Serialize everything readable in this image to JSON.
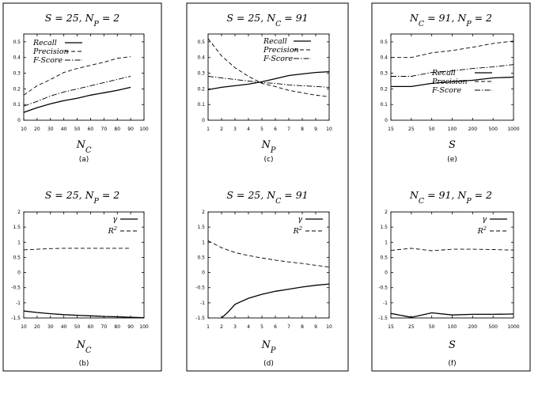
{
  "chart_data": [
    {
      "id": "a",
      "type": "line",
      "title": "S = 25, N_P = 2",
      "xlabel": "N_C",
      "caption": "(a)",
      "xlim": [
        10,
        100
      ],
      "ylim": [
        0,
        0.55
      ],
      "xticks": [
        10,
        20,
        30,
        40,
        50,
        60,
        70,
        80,
        90,
        100
      ],
      "yticks": [
        0,
        0.1,
        0.2,
        0.3,
        0.4,
        0.5
      ],
      "legend_position": "top-left",
      "series": [
        {
          "name": "Recall",
          "style": "solid",
          "x": [
            10,
            20,
            30,
            40,
            50,
            60,
            70,
            80,
            90
          ],
          "y": [
            0.05,
            0.08,
            0.105,
            0.125,
            0.14,
            0.16,
            0.175,
            0.19,
            0.21
          ]
        },
        {
          "name": "Precision",
          "style": "dashed",
          "x": [
            10,
            20,
            30,
            40,
            50,
            60,
            70,
            80,
            90
          ],
          "y": [
            0.16,
            0.22,
            0.26,
            0.305,
            0.33,
            0.35,
            0.37,
            0.395,
            0.405
          ]
        },
        {
          "name": "F-Score",
          "style": "dashdot",
          "x": [
            10,
            20,
            30,
            40,
            50,
            60,
            70,
            80,
            90
          ],
          "y": [
            0.09,
            0.12,
            0.155,
            0.18,
            0.2,
            0.22,
            0.24,
            0.26,
            0.28
          ]
        }
      ]
    },
    {
      "id": "c",
      "type": "line",
      "title": "S = 25, N_C = 91",
      "xlabel": "N_P",
      "caption": "(c)",
      "xlim": [
        1,
        10
      ],
      "ylim": [
        0,
        0.55
      ],
      "xticks": [
        1,
        2,
        3,
        4,
        5,
        6,
        7,
        8,
        9,
        10
      ],
      "yticks": [
        0,
        0.1,
        0.2,
        0.3,
        0.4,
        0.5
      ],
      "legend_position": "top-right",
      "series": [
        {
          "name": "Recall",
          "style": "solid",
          "x": [
            1,
            2,
            3,
            4,
            5,
            6,
            7,
            8,
            9,
            10
          ],
          "y": [
            0.195,
            0.21,
            0.22,
            0.23,
            0.245,
            0.265,
            0.285,
            0.295,
            0.305,
            0.31
          ]
        },
        {
          "name": "Precision",
          "style": "dashed",
          "x": [
            1,
            2,
            3,
            4,
            5,
            6,
            7,
            8,
            9,
            10
          ],
          "y": [
            0.52,
            0.41,
            0.335,
            0.28,
            0.235,
            0.215,
            0.19,
            0.175,
            0.16,
            0.15
          ]
        },
        {
          "name": "F-Score",
          "style": "dashdot",
          "x": [
            1,
            2,
            3,
            4,
            5,
            6,
            7,
            8,
            9,
            10
          ],
          "y": [
            0.28,
            0.27,
            0.26,
            0.25,
            0.24,
            0.235,
            0.225,
            0.22,
            0.215,
            0.21
          ]
        }
      ]
    },
    {
      "id": "e",
      "type": "line",
      "title": "N_C = 91, N_P = 2",
      "xlabel": "S",
      "caption": "(e)",
      "xscale": "log",
      "xlim": [
        15,
        1000
      ],
      "ylim": [
        0,
        0.55
      ],
      "xticks": [
        15,
        25,
        50,
        100,
        200,
        500,
        1000
      ],
      "yticks": [
        0,
        0.1,
        0.2,
        0.3,
        0.4,
        0.5
      ],
      "legend_position": "bottom-right",
      "series": [
        {
          "name": "Recall",
          "style": "solid",
          "x": [
            15,
            25,
            50,
            100,
            200,
            500,
            1000
          ],
          "y": [
            0.215,
            0.215,
            0.235,
            0.245,
            0.255,
            0.27,
            0.275
          ]
        },
        {
          "name": "Precision",
          "style": "dashed",
          "x": [
            15,
            25,
            50,
            100,
            200,
            500,
            1000
          ],
          "y": [
            0.4,
            0.4,
            0.43,
            0.445,
            0.465,
            0.49,
            0.505
          ]
        },
        {
          "name": "F-Score",
          "style": "dashdot",
          "x": [
            15,
            25,
            50,
            100,
            200,
            500,
            1000
          ],
          "y": [
            0.28,
            0.28,
            0.305,
            0.315,
            0.33,
            0.34,
            0.355
          ]
        }
      ]
    },
    {
      "id": "b",
      "type": "line",
      "title": "S = 25, N_P = 2",
      "xlabel": "N_C",
      "caption": "(b)",
      "xlim": [
        10,
        100
      ],
      "ylim": [
        -1.5,
        2
      ],
      "xticks": [
        10,
        20,
        30,
        40,
        50,
        60,
        70,
        80,
        90,
        100
      ],
      "yticks": [
        -1.5,
        -1,
        -0.5,
        0,
        0.5,
        1,
        1.5,
        2
      ],
      "legend_position": "top-right",
      "series": [
        {
          "name": "γ",
          "style": "solid",
          "x": [
            10,
            20,
            30,
            40,
            50,
            60,
            70,
            80,
            90,
            100
          ],
          "y": [
            -1.27,
            -1.32,
            -1.36,
            -1.39,
            -1.41,
            -1.43,
            -1.45,
            -1.46,
            -1.48,
            -1.49
          ]
        },
        {
          "name": "R²",
          "style": "dashed",
          "x": [
            10,
            20,
            30,
            40,
            50,
            60,
            70,
            80,
            90
          ],
          "y": [
            0.75,
            0.77,
            0.79,
            0.8,
            0.8,
            0.8,
            0.8,
            0.8,
            0.8
          ]
        }
      ]
    },
    {
      "id": "d",
      "type": "line",
      "title": "S = 25, N_C = 91",
      "xlabel": "N_P",
      "caption": "(d)",
      "xlim": [
        1,
        10
      ],
      "ylim": [
        -1.5,
        2
      ],
      "xticks": [
        1,
        2,
        3,
        4,
        5,
        6,
        7,
        8,
        9,
        10
      ],
      "yticks": [
        -1.5,
        -1,
        -0.5,
        0,
        0.5,
        1,
        1.5,
        2
      ],
      "legend_position": "top-right",
      "series": [
        {
          "name": "γ",
          "style": "solid",
          "x": [
            2,
            2.5,
            3,
            4,
            5,
            6,
            7,
            8,
            9,
            10
          ],
          "y": [
            -1.5,
            -1.3,
            -1.05,
            -0.85,
            -0.72,
            -0.62,
            -0.55,
            -0.48,
            -0.42,
            -0.38
          ]
        },
        {
          "name": "R²",
          "style": "dashed",
          "x": [
            1,
            2,
            3,
            4,
            5,
            6,
            7,
            8,
            9,
            10
          ],
          "y": [
            1.05,
            0.82,
            0.66,
            0.56,
            0.48,
            0.41,
            0.35,
            0.3,
            0.24,
            0.18
          ]
        }
      ]
    },
    {
      "id": "f",
      "type": "line",
      "title": "N_C = 91, N_P = 2",
      "xlabel": "S",
      "caption": "(f)",
      "xscale": "log",
      "xlim": [
        15,
        1000
      ],
      "ylim": [
        -1.5,
        2
      ],
      "xticks": [
        15,
        25,
        50,
        100,
        200,
        500,
        1000
      ],
      "yticks": [
        -1.5,
        -1,
        -0.5,
        0,
        0.5,
        1,
        1.5,
        2
      ],
      "legend_position": "top-right",
      "series": [
        {
          "name": "γ",
          "style": "solid",
          "x": [
            15,
            25,
            50,
            100,
            200,
            500,
            1000
          ],
          "y": [
            -1.35,
            -1.48,
            -1.33,
            -1.4,
            -1.38,
            -1.38,
            -1.37
          ]
        },
        {
          "name": "R²",
          "style": "dashed",
          "x": [
            15,
            25,
            50,
            100,
            200,
            500,
            1000
          ],
          "y": [
            0.73,
            0.8,
            0.72,
            0.77,
            0.77,
            0.76,
            0.74
          ]
        }
      ]
    }
  ]
}
